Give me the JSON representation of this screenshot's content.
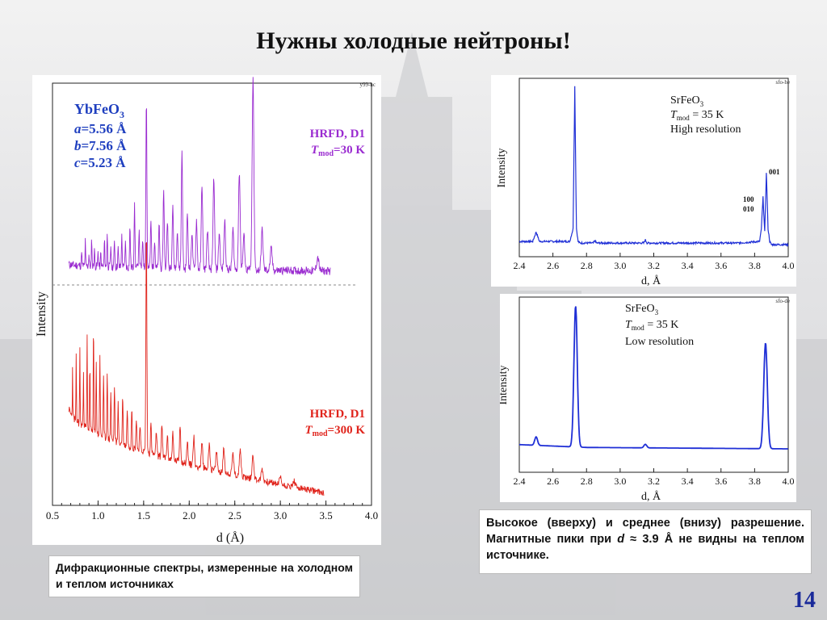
{
  "slide": {
    "title": "Нужны холодные нейтроны!",
    "page_number": "14",
    "left_caption": "Дифракционные спектры, измеренные на холодном и теплом источниках",
    "right_caption_parts": [
      "Высокое (вверху) и среднее (внизу) разрешение. Магнитные пики при ",
      "d",
      " ≈ 3.9 Å не видны на теплом источнике."
    ]
  },
  "chart_data": [
    {
      "type": "line",
      "tag": "y99-hc",
      "xlabel": "d (Å)",
      "ylabel": "Intensity",
      "xlim": [
        0.5,
        4.0
      ],
      "xticks": [
        "0.5",
        "1.0",
        "1.5",
        "2.0",
        "2.5",
        "3.0",
        "3.5",
        "4.0"
      ],
      "compound": "YbFeO",
      "compound_sub": "3",
      "lattice": [
        {
          "name": "a",
          "value": "=5.56 Å"
        },
        {
          "name": "b",
          "value": "=7.56 Å"
        },
        {
          "name": "c",
          "value": "=5.23 Å"
        }
      ],
      "colors": {
        "cold": "#9a2bd0",
        "warm": "#e0241c",
        "label_blue": "#1f3fbf"
      },
      "series": [
        {
          "name": "HRFD, D1",
          "tmod_prefix": "T",
          "tmod_sub": "mod",
          "tmod_value": "=30 K",
          "baseline_left": 0.62,
          "baseline_right": 0.4,
          "x_range": [
            0.68,
            3.55
          ],
          "peaks": [
            [
              0.82,
              0.55
            ],
            [
              0.86,
              0.8
            ],
            [
              0.9,
              0.4
            ],
            [
              0.93,
              0.9
            ],
            [
              0.96,
              0.6
            ],
            [
              1.0,
              0.5
            ],
            [
              1.03,
              0.45
            ],
            [
              1.07,
              0.85
            ],
            [
              1.1,
              1.1
            ],
            [
              1.14,
              0.7
            ],
            [
              1.18,
              0.9
            ],
            [
              1.22,
              0.6
            ],
            [
              1.26,
              1.0
            ],
            [
              1.3,
              0.8
            ],
            [
              1.35,
              1.3
            ],
            [
              1.4,
              2.0
            ],
            [
              1.45,
              1.2
            ],
            [
              1.49,
              0.9
            ],
            [
              1.53,
              5.6
            ],
            [
              1.58,
              1.5
            ],
            [
              1.62,
              0.9
            ],
            [
              1.67,
              1.4
            ],
            [
              1.72,
              2.6
            ],
            [
              1.76,
              1.6
            ],
            [
              1.82,
              2.2
            ],
            [
              1.87,
              1.2
            ],
            [
              1.92,
              3.8
            ],
            [
              1.98,
              1.8
            ],
            [
              2.03,
              1.2
            ],
            [
              2.08,
              1.6
            ],
            [
              2.14,
              2.8
            ],
            [
              2.2,
              1.3
            ],
            [
              2.27,
              3.0
            ],
            [
              2.33,
              1.2
            ],
            [
              2.39,
              1.6
            ],
            [
              2.48,
              1.3
            ],
            [
              2.55,
              3.2
            ],
            [
              2.6,
              1.1
            ],
            [
              2.7,
              6.2
            ],
            [
              2.8,
              1.3
            ],
            [
              2.9,
              0.7
            ],
            [
              3.41,
              0.45
            ]
          ]
        },
        {
          "name": "HRFD, D1",
          "tmod_prefix": "T",
          "tmod_sub": "mod",
          "tmod_value": "=300 K",
          "baseline_left": 3.6,
          "baseline_right": 0.12,
          "x_range": [
            0.68,
            3.48
          ],
          "peaks": [
            [
              0.72,
              2.0
            ],
            [
              0.76,
              2.6
            ],
            [
              0.8,
              3.2
            ],
            [
              0.84,
              2.4
            ],
            [
              0.88,
              3.8
            ],
            [
              0.91,
              2.8
            ],
            [
              0.95,
              4.4
            ],
            [
              0.98,
              3.0
            ],
            [
              1.02,
              3.4
            ],
            [
              1.06,
              2.4
            ],
            [
              1.1,
              2.8
            ],
            [
              1.14,
              2.0
            ],
            [
              1.18,
              2.3
            ],
            [
              1.22,
              1.6
            ],
            [
              1.27,
              2.0
            ],
            [
              1.32,
              1.5
            ],
            [
              1.37,
              1.7
            ],
            [
              1.42,
              1.3
            ],
            [
              1.46,
              1.1
            ],
            [
              1.53,
              9.2
            ],
            [
              1.58,
              1.2
            ],
            [
              1.64,
              1.0
            ],
            [
              1.7,
              1.4
            ],
            [
              1.76,
              0.9
            ],
            [
              1.82,
              1.1
            ],
            [
              1.9,
              1.5
            ],
            [
              1.98,
              0.9
            ],
            [
              2.05,
              1.2
            ],
            [
              2.14,
              1.0
            ],
            [
              2.22,
              1.1
            ],
            [
              2.3,
              0.8
            ],
            [
              2.38,
              1.0
            ],
            [
              2.48,
              0.9
            ],
            [
              2.56,
              1.2
            ],
            [
              2.7,
              1.0
            ],
            [
              2.8,
              0.5
            ],
            [
              3.0,
              0.3
            ],
            [
              3.15,
              0.25
            ]
          ]
        }
      ]
    },
    {
      "type": "line",
      "tag": "sfo-he",
      "xlabel": "d, Å",
      "ylabel": "Intensity",
      "xlim": [
        2.4,
        4.0
      ],
      "xticks": [
        "2.4",
        "2.6",
        "2.8",
        "3.0",
        "3.2",
        "3.4",
        "3.6",
        "3.8",
        "4.0"
      ],
      "compound": "SrFeO",
      "compound_sub": "3",
      "tmod_prefix": "T",
      "tmod_sub": "mod",
      "tmod_value": " = 35 K",
      "mode": "High resolution",
      "peak_labels": [
        "001",
        "100",
        "010"
      ],
      "color": "#1f2fd6",
      "series": [
        {
          "x": [
            2.4,
            2.48,
            2.49,
            2.5,
            2.51,
            2.52,
            2.6,
            2.7,
            2.72,
            2.73,
            2.74,
            2.75,
            2.76,
            2.8,
            2.84,
            2.85,
            2.86,
            3.0,
            3.14,
            3.15,
            3.16,
            3.3,
            3.5,
            3.7,
            3.83,
            3.84,
            3.85,
            3.86,
            3.87,
            3.88,
            3.89,
            3.9,
            4.0
          ],
          "y": [
            0.02,
            0.02,
            0.05,
            0.08,
            0.05,
            0.02,
            0.02,
            0.02,
            0.1,
            1.0,
            0.1,
            0.02,
            0.01,
            0.01,
            0.01,
            0.025,
            0.01,
            0.01,
            0.01,
            0.03,
            0.01,
            0.01,
            0.01,
            0.01,
            0.02,
            0.1,
            0.3,
            0.08,
            0.45,
            0.1,
            0.02,
            0.0,
            0.0
          ]
        }
      ]
    },
    {
      "type": "line",
      "tag": "sfo-de",
      "xlabel": "d, Å",
      "ylabel": "Intensity",
      "xlim": [
        2.4,
        4.0
      ],
      "xticks": [
        "2.4",
        "2.6",
        "2.8",
        "3.0",
        "3.2",
        "3.4",
        "3.6",
        "3.8",
        "4.0"
      ],
      "compound": "SrFeO",
      "compound_sub": "3",
      "tmod_prefix": "T",
      "tmod_sub": "mod",
      "tmod_value": " = 35 K",
      "mode": "Low resolution",
      "color": "#1f2fd6",
      "series": [
        {
          "peaks": [
            [
              2.5,
              0.06,
              0.012
            ],
            [
              2.735,
              1.0,
              0.014
            ],
            [
              3.15,
              0.025,
              0.012
            ],
            [
              3.865,
              0.75,
              0.015
            ]
          ],
          "baseline": [
            [
              2.4,
              0.03
            ],
            [
              2.8,
              0.01
            ],
            [
              3.4,
              0.005
            ],
            [
              4.0,
              0.0
            ]
          ]
        }
      ]
    }
  ]
}
